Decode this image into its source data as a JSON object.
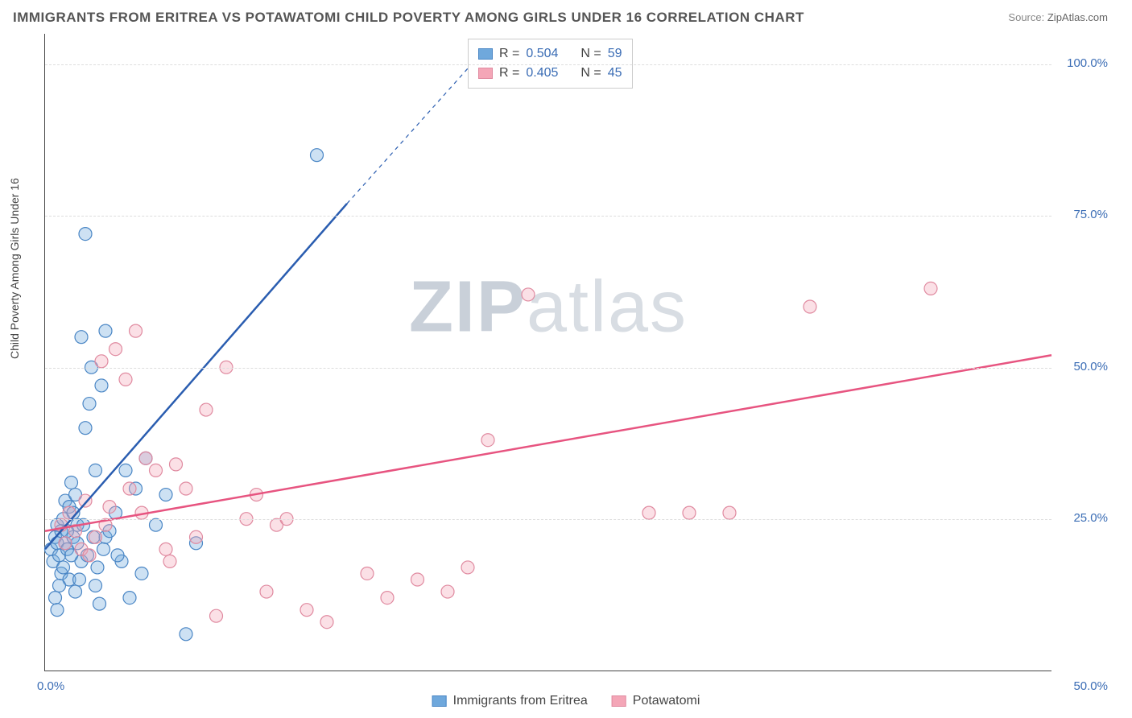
{
  "title": "IMMIGRANTS FROM ERITREA VS POTAWATOMI CHILD POVERTY AMONG GIRLS UNDER 16 CORRELATION CHART",
  "source_label": "Source:",
  "source_value": "ZipAtlas.com",
  "yaxis_title": "Child Poverty Among Girls Under 16",
  "watermark_bold": "ZIP",
  "watermark_light": "atlas",
  "chart": {
    "type": "scatter",
    "xlim": [
      0,
      50
    ],
    "ylim": [
      0,
      105
    ],
    "yticks": [
      25,
      50,
      75,
      100
    ],
    "ytick_labels": [
      "25.0%",
      "50.0%",
      "75.0%",
      "100.0%"
    ],
    "xtick_min_label": "0.0%",
    "xtick_max_label": "50.0%",
    "background_color": "#ffffff",
    "grid_color": "#dddddd",
    "axis_color": "#444444",
    "tick_label_color": "#3b6db5",
    "tick_fontsize": 15,
    "axis_title_fontsize": 14,
    "marker_radius": 8,
    "marker_fill_opacity": 0.35,
    "line_width": 2.5,
    "series": [
      {
        "name": "Immigrants from Eritrea",
        "color": "#6fa8dc",
        "line_color": "#2a5db0",
        "stroke": "#4a86c5",
        "R": "0.504",
        "N": "59",
        "trend": {
          "x1": 0,
          "y1": 20,
          "x2": 15,
          "y2": 77
        },
        "trend_dash": {
          "x1": 15,
          "y1": 77,
          "x2": 22,
          "y2": 103
        },
        "points": [
          [
            0.3,
            20
          ],
          [
            0.4,
            18
          ],
          [
            0.5,
            22
          ],
          [
            0.6,
            21
          ],
          [
            0.6,
            24
          ],
          [
            0.7,
            19
          ],
          [
            0.8,
            23
          ],
          [
            0.8,
            16
          ],
          [
            0.9,
            25
          ],
          [
            1.0,
            21
          ],
          [
            1.0,
            28
          ],
          [
            1.1,
            20
          ],
          [
            1.2,
            27
          ],
          [
            1.2,
            15
          ],
          [
            1.3,
            31
          ],
          [
            1.4,
            22
          ],
          [
            1.5,
            13
          ],
          [
            1.5,
            29
          ],
          [
            1.6,
            24
          ],
          [
            1.8,
            55
          ],
          [
            1.8,
            18
          ],
          [
            2.0,
            40
          ],
          [
            2.0,
            72
          ],
          [
            2.2,
            44
          ],
          [
            2.3,
            50
          ],
          [
            2.5,
            14
          ],
          [
            2.5,
            33
          ],
          [
            2.7,
            11
          ],
          [
            2.8,
            47
          ],
          [
            3.0,
            22
          ],
          [
            3.0,
            56
          ],
          [
            3.5,
            26
          ],
          [
            3.8,
            18
          ],
          [
            4.0,
            33
          ],
          [
            4.2,
            12
          ],
          [
            4.5,
            30
          ],
          [
            5.0,
            35
          ],
          [
            5.5,
            24
          ],
          [
            6.0,
            29
          ],
          [
            7.0,
            6
          ],
          [
            7.5,
            21
          ],
          [
            13.5,
            85
          ],
          [
            0.5,
            12
          ],
          [
            0.6,
            10
          ],
          [
            0.7,
            14
          ],
          [
            0.9,
            17
          ],
          [
            1.1,
            23
          ],
          [
            1.3,
            19
          ],
          [
            1.4,
            26
          ],
          [
            1.6,
            21
          ],
          [
            1.7,
            15
          ],
          [
            1.9,
            24
          ],
          [
            2.1,
            19
          ],
          [
            2.4,
            22
          ],
          [
            2.6,
            17
          ],
          [
            2.9,
            20
          ],
          [
            3.2,
            23
          ],
          [
            3.6,
            19
          ],
          [
            4.8,
            16
          ]
        ]
      },
      {
        "name": "Potawatomi",
        "color": "#f4a6b7",
        "line_color": "#e75480",
        "stroke": "#e08aa0",
        "R": "0.405",
        "N": "45",
        "trend": {
          "x1": 0,
          "y1": 23,
          "x2": 50,
          "y2": 52
        },
        "points": [
          [
            0.8,
            24
          ],
          [
            1.0,
            21
          ],
          [
            1.2,
            26
          ],
          [
            1.5,
            23
          ],
          [
            1.8,
            20
          ],
          [
            2.0,
            28
          ],
          [
            2.5,
            22
          ],
          [
            2.8,
            51
          ],
          [
            3.0,
            24
          ],
          [
            3.5,
            53
          ],
          [
            4.0,
            48
          ],
          [
            4.2,
            30
          ],
          [
            4.5,
            56
          ],
          [
            5.0,
            35
          ],
          [
            5.5,
            33
          ],
          [
            6.0,
            20
          ],
          [
            6.5,
            34
          ],
          [
            7.0,
            30
          ],
          [
            7.5,
            22
          ],
          [
            8.0,
            43
          ],
          [
            8.5,
            9
          ],
          [
            9.0,
            50
          ],
          [
            10.0,
            25
          ],
          [
            10.5,
            29
          ],
          [
            11.0,
            13
          ],
          [
            11.5,
            24
          ],
          [
            12.0,
            25
          ],
          [
            13.0,
            10
          ],
          [
            14.0,
            8
          ],
          [
            16.0,
            16
          ],
          [
            17.0,
            12
          ],
          [
            18.5,
            15
          ],
          [
            20.0,
            13
          ],
          [
            21.0,
            17
          ],
          [
            22.0,
            38
          ],
          [
            24.0,
            62
          ],
          [
            30.0,
            26
          ],
          [
            32.0,
            26
          ],
          [
            34.0,
            26
          ],
          [
            38.0,
            60
          ],
          [
            44.0,
            63
          ],
          [
            3.2,
            27
          ],
          [
            4.8,
            26
          ],
          [
            6.2,
            18
          ],
          [
            2.2,
            19
          ]
        ]
      }
    ]
  },
  "legend_top": {
    "R_label": "R =",
    "N_label": "N ="
  }
}
